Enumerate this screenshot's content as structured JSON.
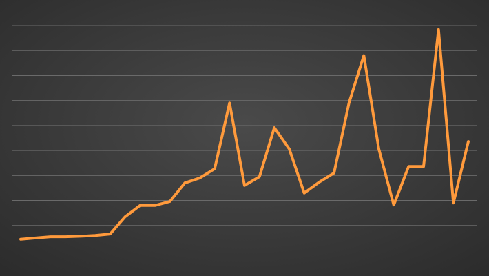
{
  "chart_data": {
    "type": "line",
    "title": "",
    "xlabel": "",
    "ylabel": "",
    "grid": true,
    "ylim": [
      0,
      9
    ],
    "x": [
      1,
      2,
      3,
      4,
      5,
      6,
      7,
      8,
      9,
      10,
      11,
      12,
      13,
      14,
      15,
      16,
      17,
      18,
      19,
      20,
      21,
      22,
      23,
      24,
      25,
      26,
      27,
      28,
      29,
      30,
      31
    ],
    "series": [
      {
        "color": "#FF9A3C",
        "values": [
          0.45,
          0.5,
          0.55,
          0.55,
          0.57,
          0.6,
          0.66,
          1.35,
          1.8,
          1.8,
          1.96,
          2.7,
          2.9,
          3.27,
          5.9,
          2.6,
          2.95,
          4.91,
          4.06,
          2.3,
          2.73,
          3.1,
          5.9,
          7.8,
          4.06,
          1.82,
          3.36,
          3.36,
          8.84,
          1.9,
          4.36
        ]
      }
    ],
    "background": {
      "top": "#2b2b2b",
      "bottom": "#4a4a4a"
    },
    "gridline_color": "#6a6a6a"
  }
}
